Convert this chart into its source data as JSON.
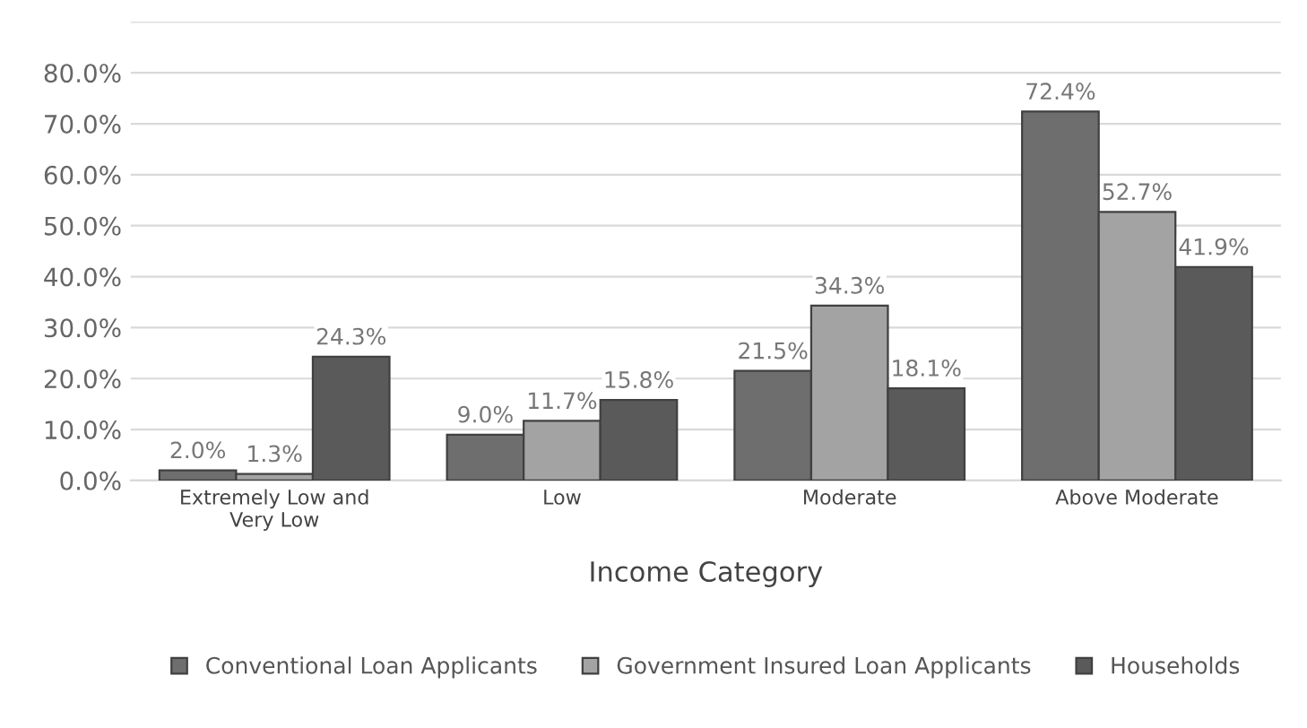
{
  "chart_data": {
    "type": "bar",
    "xlabel": "Income Category",
    "categories": [
      "Extremely Low and\nVery Low",
      "Low",
      "Moderate",
      "Above Moderate"
    ],
    "series": [
      {
        "name": "Conventional Loan Applicants",
        "color": "#6e6e6e",
        "values": [
          2.0,
          9.0,
          21.5,
          72.4
        ],
        "value_labels": [
          "2.0%",
          "9.0%",
          "21.5%",
          "72.4%"
        ]
      },
      {
        "name": "Government Insured Loan Applicants",
        "color": "#a3a3a3",
        "values": [
          1.3,
          11.7,
          34.3,
          52.7
        ],
        "value_labels": [
          "1.3%",
          "11.7%",
          "34.3%",
          "52.7%"
        ]
      },
      {
        "name": "Households",
        "color": "#5a5a5a",
        "values": [
          24.3,
          15.8,
          18.1,
          41.9
        ],
        "value_labels": [
          "24.3%",
          "15.8%",
          "18.1%",
          "41.9%"
        ]
      }
    ],
    "ylim": [
      0,
      90
    ],
    "yticks": [
      {
        "value": 0,
        "label": "0.0%"
      },
      {
        "value": 10,
        "label": "10.0%"
      },
      {
        "value": 20,
        "label": "20.0%"
      },
      {
        "value": 30,
        "label": "30.0%"
      },
      {
        "value": 40,
        "label": "40.0%"
      },
      {
        "value": 50,
        "label": "50.0%"
      },
      {
        "value": 60,
        "label": "60.0%"
      },
      {
        "value": 70,
        "label": "70.0%"
      },
      {
        "value": 80,
        "label": "80.0%"
      },
      {
        "value": 90,
        "label": null
      }
    ],
    "grid": "y",
    "legend": "bottom"
  }
}
